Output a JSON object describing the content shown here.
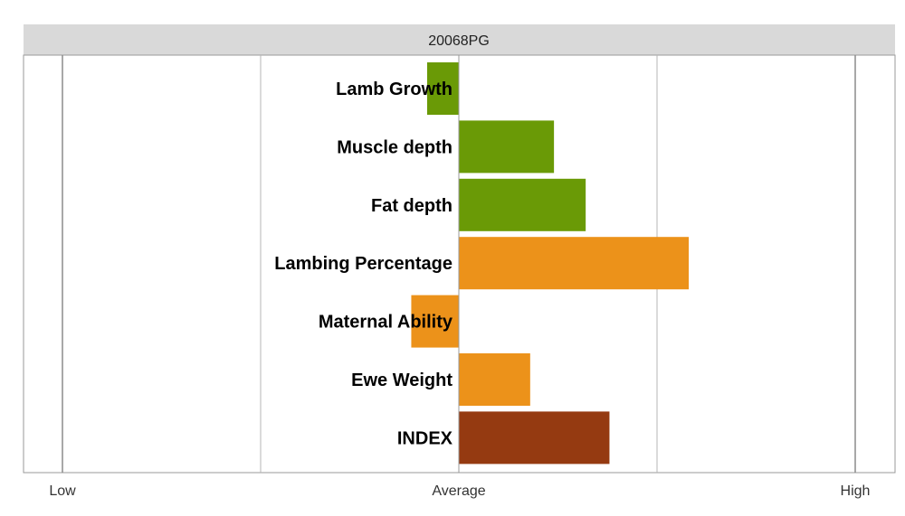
{
  "chart_data": {
    "type": "bar",
    "orientation": "horizontal",
    "title": "20068PG",
    "categories": [
      "Lamb Growth",
      "Muscle depth",
      "Fat depth",
      "Lambing Percentage",
      "Maternal Ability",
      "Ewe Weight",
      "INDEX"
    ],
    "values": [
      -0.08,
      0.24,
      0.32,
      0.58,
      -0.12,
      0.18,
      0.38
    ],
    "colors": [
      "#6a9a06",
      "#6a9a06",
      "#6a9a06",
      "#ec921a",
      "#ec921a",
      "#ec921a",
      "#953a11"
    ],
    "xlim": [
      -1,
      1
    ],
    "xticks": [
      -1,
      0,
      1
    ],
    "xtick_labels": [
      "Low",
      "Average",
      "High"
    ],
    "gridlines": [
      -1,
      -0.5,
      0,
      0.5,
      1
    ],
    "grid": true,
    "legend": "none"
  }
}
